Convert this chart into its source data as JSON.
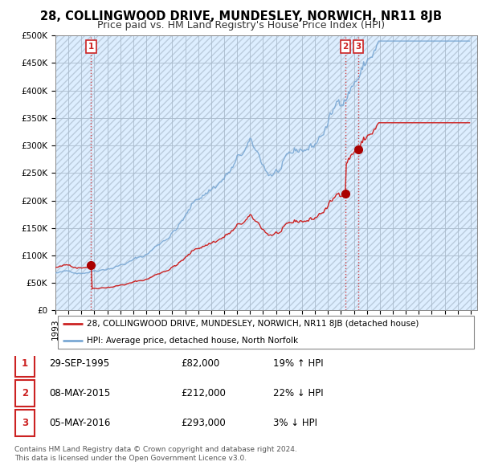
{
  "title": "28, COLLINGWOOD DRIVE, MUNDESLEY, NORWICH, NR11 8JB",
  "subtitle": "Price paid vs. HM Land Registry's House Price Index (HPI)",
  "ylim": [
    0,
    500000
  ],
  "xlim_start": 1993.0,
  "xlim_end": 2025.5,
  "sales": [
    {
      "date": 1995.75,
      "price": 82000,
      "label": "1"
    },
    {
      "date": 2015.35,
      "price": 212000,
      "label": "2"
    },
    {
      "date": 2016.34,
      "price": 293000,
      "label": "3"
    }
  ],
  "sale_color": "#cc2222",
  "hpi_color": "#7aa8d4",
  "vline_color": "#cc2222",
  "bg_color": "#ddeeff",
  "legend_entries": [
    "28, COLLINGWOOD DRIVE, MUNDESLEY, NORWICH, NR11 8JB (detached house)",
    "HPI: Average price, detached house, North Norfolk"
  ],
  "table_rows": [
    {
      "num": "1",
      "date": "29-SEP-1995",
      "price": "£82,000",
      "change": "19% ↑ HPI"
    },
    {
      "num": "2",
      "date": "08-MAY-2015",
      "price": "£212,000",
      "change": "22% ↓ HPI"
    },
    {
      "num": "3",
      "date": "05-MAY-2016",
      "price": "£293,000",
      "change": "3% ↓ HPI"
    }
  ],
  "footer": "Contains HM Land Registry data © Crown copyright and database right 2024.\nThis data is licensed under the Open Government Licence v3.0.",
  "title_fontsize": 10.5,
  "subtitle_fontsize": 9,
  "tick_fontsize": 7.5,
  "legend_fontsize": 7.5,
  "table_fontsize": 8.5,
  "footer_fontsize": 6.5
}
